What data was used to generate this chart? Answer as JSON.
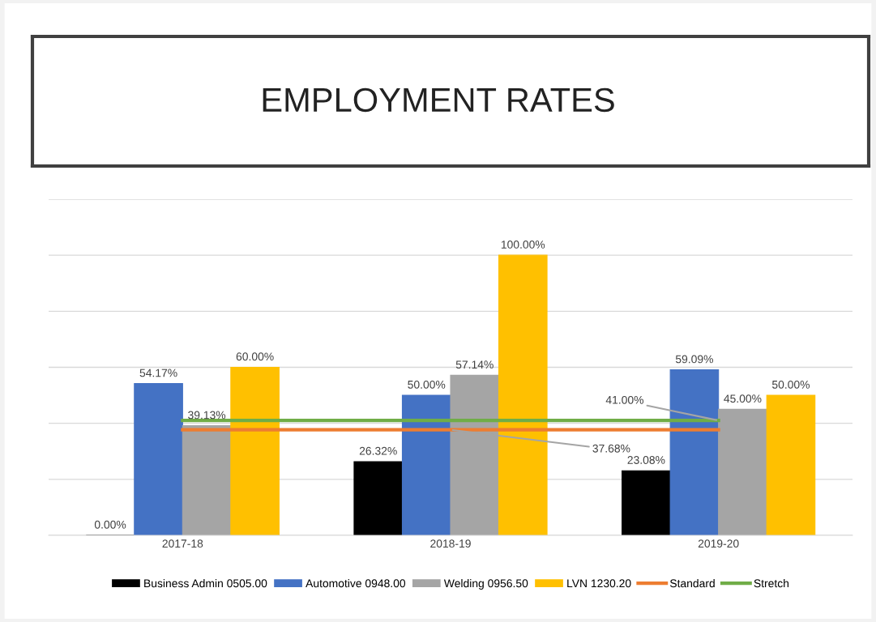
{
  "chart_data": {
    "type": "bar",
    "title": "EMPLOYMENT RATES",
    "categories": [
      "2017-18",
      "2018-19",
      "2019-20"
    ],
    "series": [
      {
        "name": "Business Admin 0505.00",
        "color": "#000000",
        "values": [
          0,
          26.32,
          23.08
        ],
        "value_labels": [
          "0.00%",
          "26.32%",
          "23.08%"
        ]
      },
      {
        "name": "Automotive 0948.00",
        "color": "#4472c4",
        "values": [
          54.17,
          50.0,
          59.09
        ],
        "value_labels": [
          "54.17%",
          "50.00%",
          "59.09%"
        ]
      },
      {
        "name": "Welding 0956.50",
        "color": "#a5a5a5",
        "values": [
          39.13,
          57.14,
          45.0
        ],
        "value_labels": [
          "39.13%",
          "57.14%",
          "45.00%"
        ]
      },
      {
        "name": "LVN 1230.20",
        "color": "#ffc000",
        "values": [
          60.0,
          100.0,
          50.0
        ],
        "value_labels": [
          "60.00%",
          "100.00%",
          "50.00%"
        ]
      },
      {
        "name": "Standard",
        "type": "line",
        "color": "#ed7d31",
        "values": [
          37.68,
          37.68,
          37.68
        ],
        "value_labels": [
          null,
          "37.68%",
          null
        ]
      },
      {
        "name": "Stretch",
        "type": "line",
        "color": "#70ad47",
        "values": [
          41.0,
          41.0,
          41.0
        ],
        "value_labels": [
          null,
          null,
          "41.00%"
        ]
      }
    ],
    "ylim": [
      0,
      120
    ],
    "yticks": [
      {
        "value": 0,
        "label": null
      },
      {
        "value": 20,
        "label": null
      },
      {
        "value": 40,
        "label": null
      },
      {
        "value": 60,
        "label": null
      },
      {
        "value": 80,
        "label": null
      },
      {
        "value": 100,
        "label": null
      },
      {
        "value": 120,
        "label": null
      }
    ],
    "tick_labels": "x",
    "grid": "y",
    "legend": "bottom"
  }
}
